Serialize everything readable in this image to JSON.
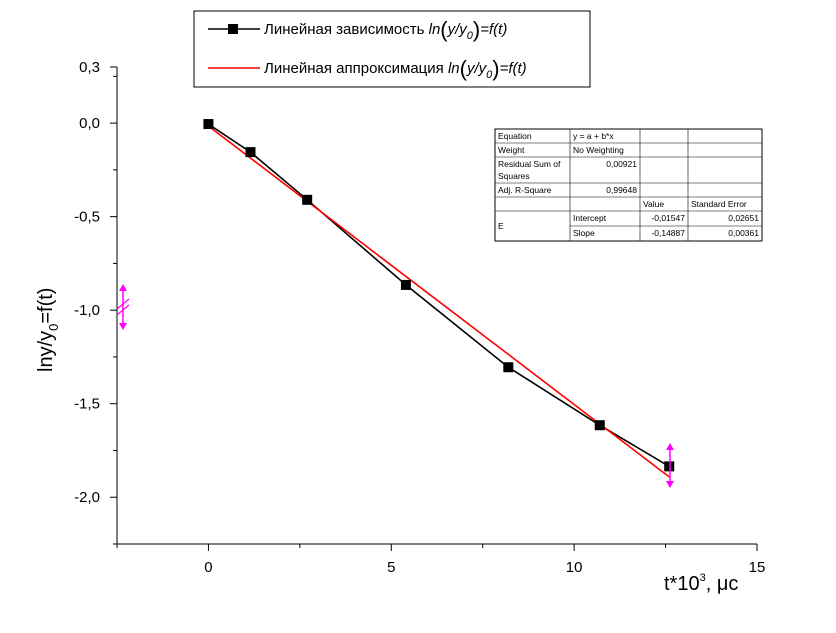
{
  "chart_data": {
    "type": "line",
    "xlabel": "t*10",
    "xlabel_sup": "3",
    "xlabel_unit": ", μс",
    "ylabel": "lny/y",
    "ylabel_sub": "0",
    "ylabel_tail": "=f(t)",
    "xlim": [
      -2.5,
      15
    ],
    "ylim": [
      -2.25,
      0.3
    ],
    "x_ticks": [
      0,
      5,
      10,
      15
    ],
    "x_tick_labels": [
      "0",
      "5",
      "10",
      "15"
    ],
    "y_ticks": [
      0.3,
      0.0,
      -0.5,
      -1.0,
      -1.5,
      -2.0
    ],
    "y_tick_labels": [
      "0,3",
      "0,0",
      "-0,5",
      "-1,0",
      "-1,5",
      "-2,0"
    ],
    "series": [
      {
        "name": "Линейная зависимость ln(y/y0)=f(t)",
        "color": "#000000",
        "marker": "square",
        "x": [
          0,
          1.15,
          2.7,
          5.4,
          8.2,
          10.7,
          12.6
        ],
        "y": [
          -0.005,
          -0.155,
          -0.41,
          -0.865,
          -1.305,
          -1.615,
          -1.835
        ]
      },
      {
        "name": "Линейная аппроксимация ln(y/y0)=f(t)",
        "color": "#ff0000",
        "marker": "none",
        "x": [
          0,
          12.6
        ],
        "y": [
          -0.01547,
          -1.89123
        ]
      }
    ],
    "legend": {
      "placement": "top-center",
      "entries": [
        {
          "prefix": "Линейная зависимость ",
          "ln": "ln",
          "y": "y",
          "slash": "/",
          "y0": "y",
          "y0_sub": "0",
          "suffix": "=f(t)"
        },
        {
          "prefix": "Линейная аппроксимация ",
          "ln": "ln",
          "y": "y",
          "slash": "/",
          "y0": "y",
          "y0_sub": "0",
          "suffix": "=f(t)"
        }
      ]
    },
    "stats_table": {
      "rows": [
        [
          "Equation",
          "y = a + b*x",
          "",
          ""
        ],
        [
          "Weight",
          "No Weighting",
          "",
          ""
        ],
        [
          "Residual Sum of Squares",
          "0,00921",
          "",
          ""
        ],
        [
          "Adj. R-Square",
          "0,99648",
          "",
          ""
        ],
        [
          "",
          "",
          "Value",
          "Standard Error"
        ],
        [
          "E",
          "Intercept",
          "-0,01547",
          "0,02651"
        ],
        [
          "",
          "Slope",
          "-0,14887",
          "0,00361"
        ]
      ]
    },
    "accent_color": "#ff00ff"
  }
}
